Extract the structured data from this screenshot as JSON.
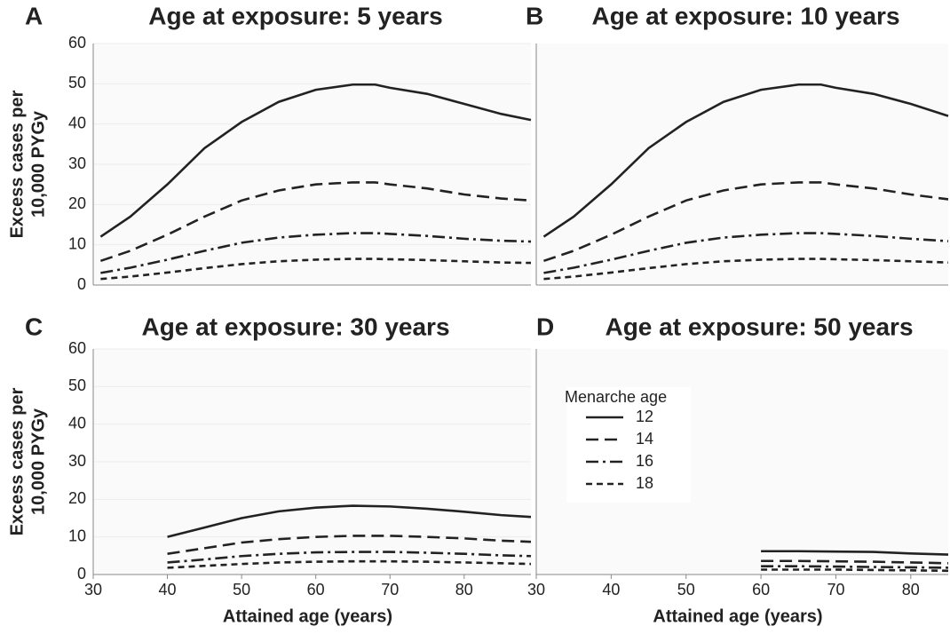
{
  "chart_data": [
    {
      "type": "line",
      "label": "A",
      "title": "Age at exposure: 5 years",
      "ylabel": [
        "Excess cases per",
        "10,000 PYGy"
      ],
      "xlim": [
        30,
        89
      ],
      "ylim": [
        0,
        60
      ],
      "yticks": [
        0,
        10,
        20,
        30,
        40,
        50,
        60
      ],
      "x": [
        31,
        35,
        40,
        45,
        50,
        55,
        60,
        65,
        68,
        70,
        75,
        80,
        85,
        89
      ],
      "series": [
        {
          "color": "#222222",
          "style": "solid",
          "values": [
            12,
            17,
            25,
            34,
            40.5,
            45.5,
            48.5,
            49.8,
            49.8,
            49,
            47.5,
            45,
            42.5,
            41
          ]
        },
        {
          "color": "#222222",
          "style": "dashed",
          "values": [
            6,
            8.5,
            12.5,
            17,
            21,
            23.5,
            25,
            25.5,
            25.5,
            25,
            24,
            22.5,
            21.5,
            21
          ]
        },
        {
          "color": "#222222",
          "style": "dashdot",
          "values": [
            3,
            4.3,
            6.3,
            8.5,
            10.5,
            11.8,
            12.5,
            12.9,
            12.9,
            12.7,
            12.2,
            11.5,
            11,
            10.8
          ]
        },
        {
          "color": "#222222",
          "style": "shortdash",
          "values": [
            1.5,
            2.1,
            3.1,
            4.2,
            5.2,
            5.9,
            6.3,
            6.5,
            6.5,
            6.4,
            6.2,
            5.9,
            5.6,
            5.5
          ]
        }
      ]
    },
    {
      "type": "line",
      "label": "B",
      "title": "Age at exposure: 10 years",
      "xlim": [
        30,
        85
      ],
      "ylim": [
        0,
        60
      ],
      "x": [
        31,
        35,
        40,
        45,
        50,
        55,
        60,
        65,
        68,
        70,
        75,
        80,
        85
      ],
      "series": [
        {
          "color": "#222222",
          "style": "solid",
          "values": [
            12,
            17,
            25,
            34,
            40.5,
            45.5,
            48.5,
            49.8,
            49.8,
            49,
            47.5,
            45,
            42
          ]
        },
        {
          "color": "#222222",
          "style": "dashed",
          "values": [
            6,
            8.5,
            12.5,
            17,
            21,
            23.5,
            25,
            25.5,
            25.5,
            25,
            24,
            22.5,
            21.3
          ]
        },
        {
          "color": "#222222",
          "style": "dashdot",
          "values": [
            3,
            4.3,
            6.3,
            8.5,
            10.5,
            11.8,
            12.5,
            12.9,
            12.9,
            12.7,
            12.2,
            11.5,
            10.9
          ]
        },
        {
          "color": "#222222",
          "style": "shortdash",
          "values": [
            1.5,
            2.1,
            3.1,
            4.2,
            5.2,
            5.9,
            6.3,
            6.5,
            6.5,
            6.4,
            6.2,
            5.9,
            5.6
          ]
        }
      ]
    },
    {
      "type": "line",
      "label": "C",
      "title": "Age at exposure: 30 years",
      "ylabel": [
        "Excess cases per",
        "10,000 PYGy"
      ],
      "xlabel": "Attained age (years)",
      "xlim": [
        30,
        89
      ],
      "ylim": [
        0,
        60
      ],
      "xticks": [
        30,
        40,
        50,
        60,
        70,
        80
      ],
      "yticks": [
        0,
        10,
        20,
        30,
        40,
        50,
        60
      ],
      "x": [
        40,
        45,
        50,
        55,
        60,
        65,
        70,
        75,
        80,
        85,
        89
      ],
      "series": [
        {
          "color": "#222222",
          "style": "solid",
          "values": [
            10,
            12.5,
            15,
            16.8,
            17.8,
            18.3,
            18.1,
            17.5,
            16.7,
            15.8,
            15.3
          ]
        },
        {
          "color": "#222222",
          "style": "dashed",
          "values": [
            5.5,
            7,
            8.5,
            9.4,
            10,
            10.3,
            10.3,
            10,
            9.6,
            9,
            8.7
          ]
        },
        {
          "color": "#222222",
          "style": "dashdot",
          "values": [
            3.2,
            4,
            4.9,
            5.5,
            5.9,
            6,
            6,
            5.8,
            5.5,
            5.1,
            4.9
          ]
        },
        {
          "color": "#222222",
          "style": "shortdash",
          "values": [
            1.8,
            2.3,
            2.8,
            3.2,
            3.4,
            3.5,
            3.5,
            3.4,
            3.2,
            3,
            2.8
          ]
        }
      ]
    },
    {
      "type": "line",
      "label": "D",
      "title": "Age at exposure: 50 years",
      "xlabel": "Attained age (years)",
      "xlim": [
        30,
        85
      ],
      "ylim": [
        0,
        60
      ],
      "xticks": [
        30,
        40,
        50,
        60,
        70,
        80
      ],
      "legend": {
        "title": "Menarche age"
      },
      "x": [
        60,
        65,
        70,
        75,
        80,
        85
      ],
      "series": [
        {
          "name": "12",
          "color": "#222222",
          "style": "solid",
          "values": [
            6.2,
            6.2,
            6.1,
            6,
            5.6,
            5.3
          ]
        },
        {
          "name": "14",
          "color": "#222222",
          "style": "dashed",
          "values": [
            3.6,
            3.6,
            3.5,
            3.4,
            3.2,
            3
          ]
        },
        {
          "name": "16",
          "color": "#222222",
          "style": "dashdot",
          "values": [
            2.2,
            2.2,
            2.1,
            2,
            1.9,
            1.8
          ]
        },
        {
          "name": "18",
          "color": "#222222",
          "style": "shortdash",
          "values": [
            1.3,
            1.3,
            1.3,
            1.2,
            1.1,
            1
          ]
        }
      ]
    }
  ]
}
